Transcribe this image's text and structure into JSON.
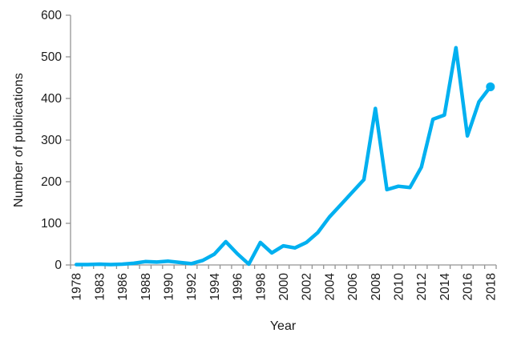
{
  "chart_data": {
    "type": "line",
    "xlabel": "Year",
    "ylabel": "Number of publications",
    "x": [
      1978,
      1982,
      1983,
      1985,
      1986,
      1987,
      1988,
      1989,
      1990,
      1991,
      1992,
      1993,
      1994,
      1995,
      1996,
      1997,
      1998,
      1999,
      2000,
      2001,
      2002,
      2003,
      2004,
      2005,
      2006,
      2007,
      2008,
      2009,
      2010,
      2011,
      2012,
      2013,
      2014,
      2015,
      2016,
      2017,
      2018
    ],
    "values": [
      1,
      1,
      2,
      1,
      2,
      4,
      8,
      7,
      9,
      6,
      3,
      11,
      26,
      56,
      27,
      2,
      54,
      29,
      46,
      41,
      54,
      78,
      115,
      145,
      175,
      205,
      376,
      181,
      189,
      186,
      235,
      350,
      360,
      522,
      310,
      392,
      428
    ],
    "x_tick_labels": [
      1978,
      1983,
      1986,
      1988,
      1990,
      1992,
      1994,
      1996,
      1998,
      2000,
      2002,
      2004,
      2006,
      2008,
      2010,
      2012,
      2014,
      2016,
      2018
    ],
    "y_ticks": [
      0,
      100,
      200,
      300,
      400,
      500,
      600
    ],
    "ylim": [
      0,
      600
    ],
    "grid": false,
    "legend": false,
    "end_marker": true,
    "line_color": "#00B0F0",
    "axis_color": "#949494",
    "text_color": "#1A1A1A"
  }
}
